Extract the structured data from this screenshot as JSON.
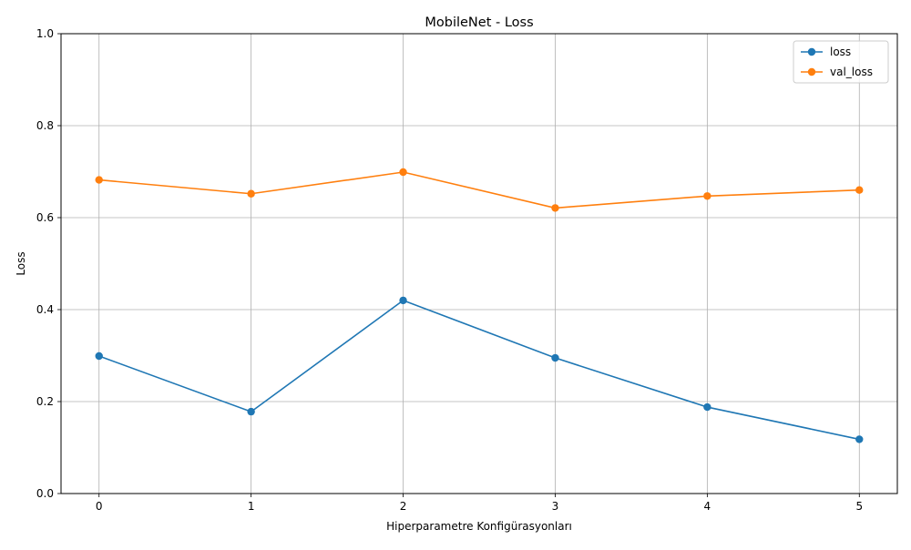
{
  "chart_data": {
    "type": "line",
    "title": "MobileNet - Loss",
    "xlabel": "Hiperparametre Konfigürasyonları",
    "ylabel": "Loss",
    "x": [
      0,
      1,
      2,
      3,
      4,
      5
    ],
    "x_ticks": [
      "0",
      "1",
      "2",
      "3",
      "4",
      "5"
    ],
    "xlim": [
      -0.25,
      5.25
    ],
    "ylim": [
      0.0,
      1.0
    ],
    "y_ticks": [
      "0.0",
      "0.2",
      "0.4",
      "0.6",
      "0.8",
      "1.0"
    ],
    "grid": true,
    "legend_position": "top-right",
    "series": [
      {
        "name": "loss",
        "color": "#1f77b4",
        "marker": "circle",
        "values": [
          0.299,
          0.178,
          0.42,
          0.295,
          0.188,
          0.118
        ]
      },
      {
        "name": "val_loss",
        "color": "#ff7f0e",
        "marker": "circle",
        "values": [
          0.682,
          0.652,
          0.699,
          0.621,
          0.647,
          0.66
        ]
      }
    ]
  }
}
